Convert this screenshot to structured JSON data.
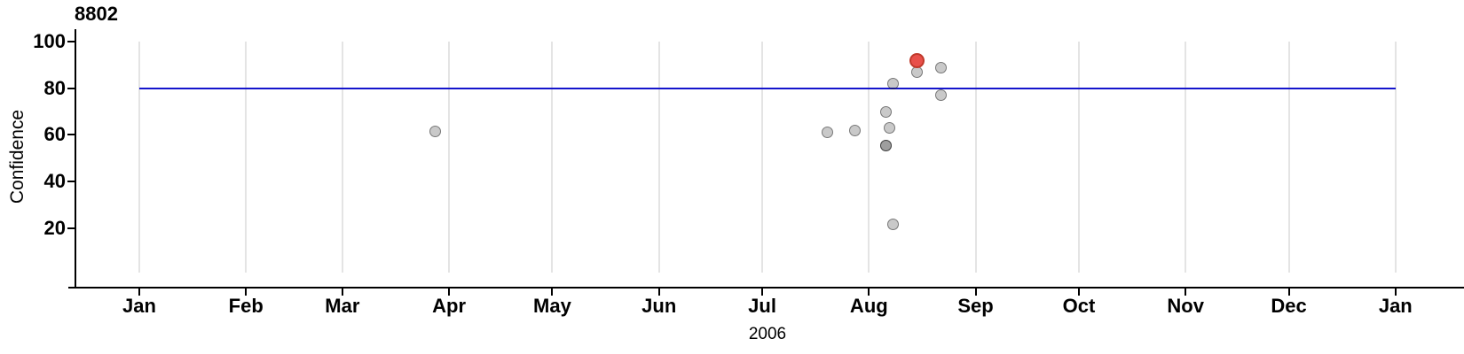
{
  "title": "8802",
  "axes": {
    "y_label": "Confidence",
    "x_year_label": "2006",
    "y_ticks": [
      20,
      40,
      60,
      80,
      100
    ],
    "x_ticks": [
      "Jan",
      "Feb",
      "Mar",
      "Apr",
      "May",
      "Jun",
      "Jul",
      "Aug",
      "Sep",
      "Oct",
      "Nov",
      "Dec",
      "Jan"
    ]
  },
  "colors": {
    "axis": "#000000",
    "gridline": "#E4E4E4",
    "threshold_line": "#1515CC",
    "point_fill": "rgba(0,0,0,0.21)",
    "point_stroke": "rgba(40,40,40,0.5)",
    "highlight_fill": "#E8504A",
    "highlight_stroke": "#C0392B"
  },
  "chart_data": {
    "type": "scatter",
    "title": "8802",
    "xlabel": "2006",
    "ylabel": "Confidence",
    "ylim": [
      0,
      105
    ],
    "x_range": [
      "2006-01-01",
      "2007-01-01"
    ],
    "x_tick_unit": "month",
    "grid": "vertical-months",
    "legend": "none",
    "threshold": 80,
    "points": [
      {
        "date": "2006-03-28",
        "confidence": 61.5
      },
      {
        "date": "2006-07-20",
        "confidence": 61
      },
      {
        "date": "2006-07-28",
        "confidence": 62
      },
      {
        "date": "2006-08-06",
        "confidence": 70
      },
      {
        "date": "2006-08-06",
        "confidence": 55.5
      },
      {
        "date": "2006-08-06",
        "confidence": 55.5
      },
      {
        "date": "2006-08-07",
        "confidence": 63
      },
      {
        "date": "2006-08-08",
        "confidence": 82
      },
      {
        "date": "2006-08-08",
        "confidence": 21.5
      },
      {
        "date": "2006-08-15",
        "confidence": 87
      },
      {
        "date": "2006-08-22",
        "confidence": 89
      },
      {
        "date": "2006-08-22",
        "confidence": 77
      },
      {
        "date": "2006-08-15",
        "confidence": 92,
        "highlight": true
      }
    ]
  }
}
